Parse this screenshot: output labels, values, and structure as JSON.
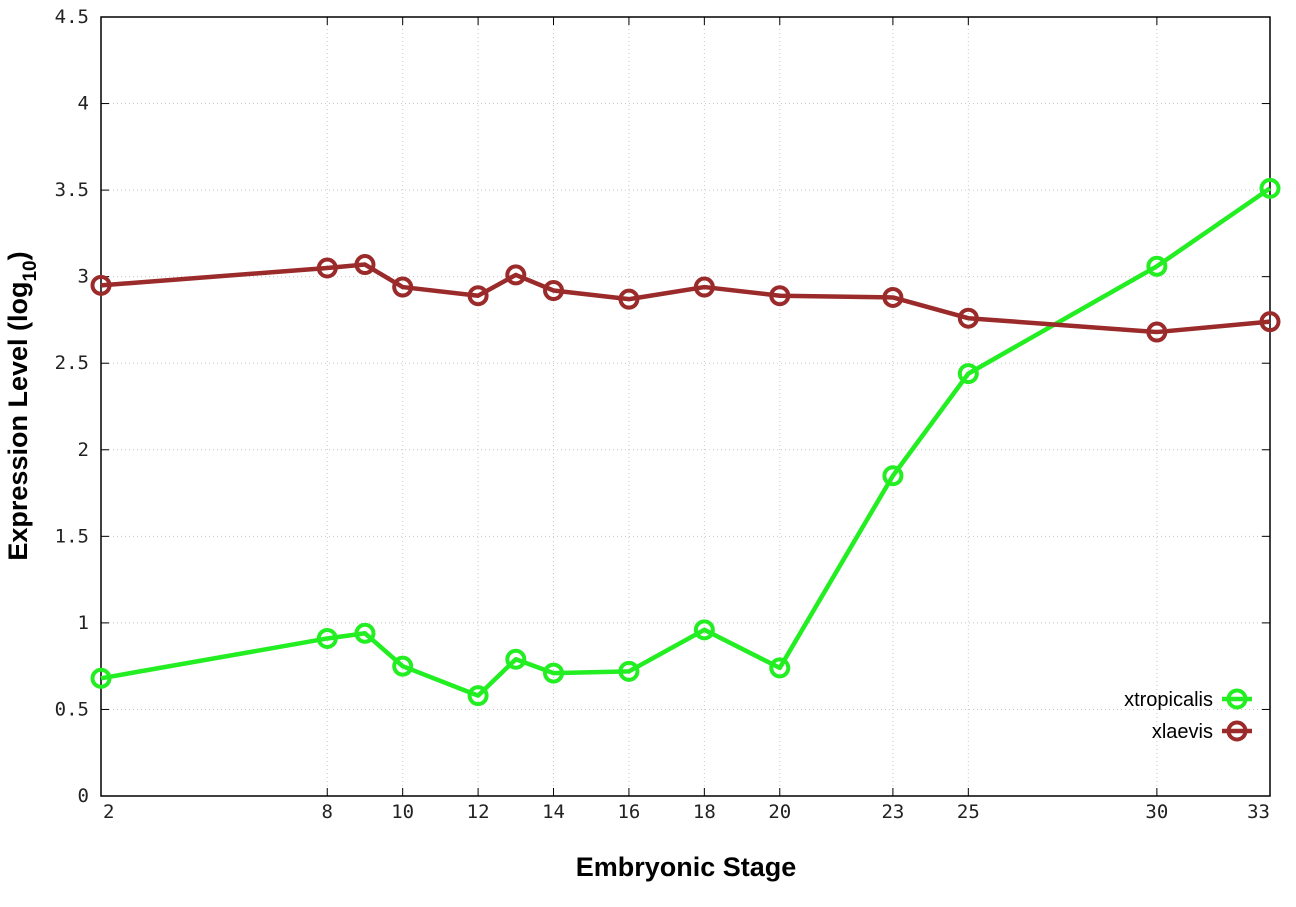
{
  "chart_data": {
    "type": "line",
    "title": "",
    "xlabel": "Embryonic Stage",
    "ylabel_main": "Expression Level (log",
    "ylabel_sub": "10",
    "ylabel_end": ")",
    "x": [
      2,
      8,
      9,
      10,
      12,
      13,
      14,
      16,
      18,
      20,
      23,
      25,
      30,
      33
    ],
    "xticks": [
      {
        "value": 2,
        "label": "2"
      },
      {
        "value": 8,
        "label": "8"
      },
      {
        "value": 10,
        "label": "10"
      },
      {
        "value": 12,
        "label": "12"
      },
      {
        "value": 14,
        "label": "14"
      },
      {
        "value": 16,
        "label": "16"
      },
      {
        "value": 18,
        "label": "18"
      },
      {
        "value": 20,
        "label": "20"
      },
      {
        "value": 23,
        "label": "23"
      },
      {
        "value": 25,
        "label": "25"
      },
      {
        "value": 30,
        "label": "30"
      },
      {
        "value": 33,
        "label": "33"
      }
    ],
    "yticks": [
      {
        "value": 0,
        "label": "0"
      },
      {
        "value": 0.5,
        "label": "0.5"
      },
      {
        "value": 1,
        "label": "1"
      },
      {
        "value": 1.5,
        "label": "1.5"
      },
      {
        "value": 2,
        "label": "2"
      },
      {
        "value": 2.5,
        "label": "2.5"
      },
      {
        "value": 3,
        "label": "3"
      },
      {
        "value": 3.5,
        "label": "3.5"
      },
      {
        "value": 4,
        "label": "4"
      },
      {
        "value": 4.5,
        "label": "4.5"
      }
    ],
    "xlim": [
      2,
      33
    ],
    "ylim": [
      0,
      4.5
    ],
    "grid": true,
    "legend_position": "bottom-right",
    "series": [
      {
        "name": "xtropicalis",
        "color": "#22ee22",
        "values": [
          0.68,
          0.91,
          0.94,
          0.75,
          0.58,
          0.79,
          0.71,
          0.72,
          0.96,
          0.74,
          1.85,
          2.44,
          3.06,
          3.51
        ]
      },
      {
        "name": "xlaevis",
        "color": "#9b2a2a",
        "values": [
          2.95,
          3.05,
          3.07,
          2.94,
          2.89,
          3.01,
          2.92,
          2.87,
          2.94,
          2.89,
          2.88,
          2.76,
          2.68,
          2.74
        ]
      }
    ]
  }
}
